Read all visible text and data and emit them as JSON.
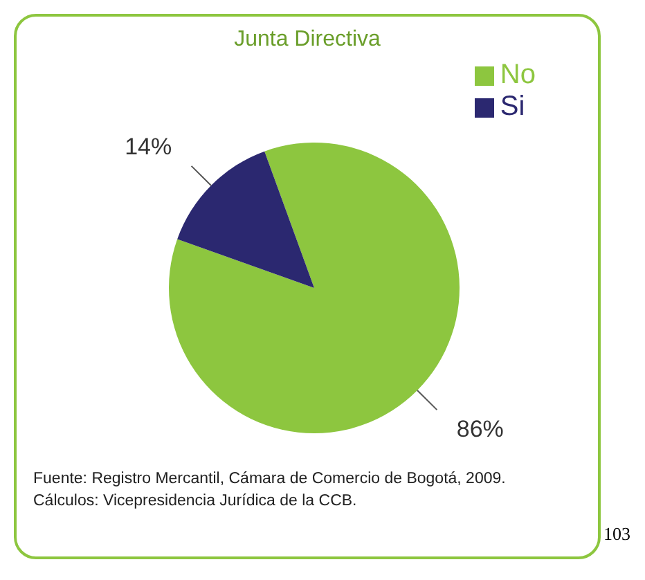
{
  "chart_data": {
    "type": "pie",
    "title": "Junta Directiva",
    "categories": [
      "No",
      "Si"
    ],
    "values": [
      86,
      14
    ],
    "value_labels": [
      "86%",
      "14%"
    ],
    "colors": [
      "#8dc63f",
      "#2b2870"
    ],
    "legend": "top right",
    "annotations": [
      "Fuente: Registro Mercantil, Cámara de Comercio de Bogotá, 2009.",
      "Cálculos: Vicepresidencia Jurídica de la CCB.",
      "103"
    ]
  }
}
